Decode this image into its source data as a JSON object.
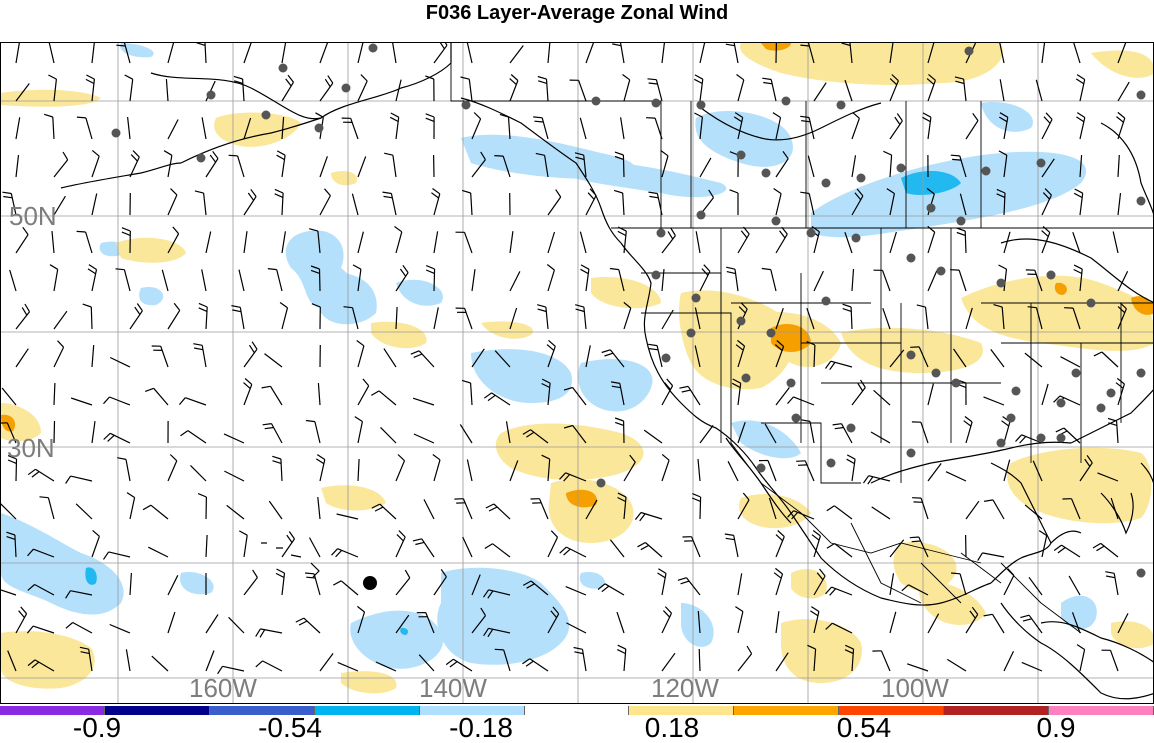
{
  "title": "F036 Layer-Average Zonal Wind",
  "latitude_labels": [
    "50N",
    "30N"
  ],
  "longitude_labels": [
    "160W",
    "140W",
    "120W",
    "100W"
  ],
  "colorbar": {
    "colors": [
      "#8a2be2",
      "#00008b",
      "#3a5fcd",
      "#00b4f0",
      "#b0e0ff",
      "#ffffff",
      "#ffe68c",
      "#ffa500",
      "#ff4500",
      "#b22222",
      "#ff80c0"
    ],
    "labels": [
      "-0.9",
      "-0.54",
      "-0.18",
      "0.18",
      "0.54",
      "0.9"
    ]
  },
  "palette": {
    "positive_light": "#fbe79a",
    "positive_mid": "#f5a000",
    "negative_light": "#b4e0fb",
    "negative_mid": "#22b8f0",
    "land_outline": "#000000",
    "grid": "#9a9a9a",
    "station": "#555555"
  }
}
